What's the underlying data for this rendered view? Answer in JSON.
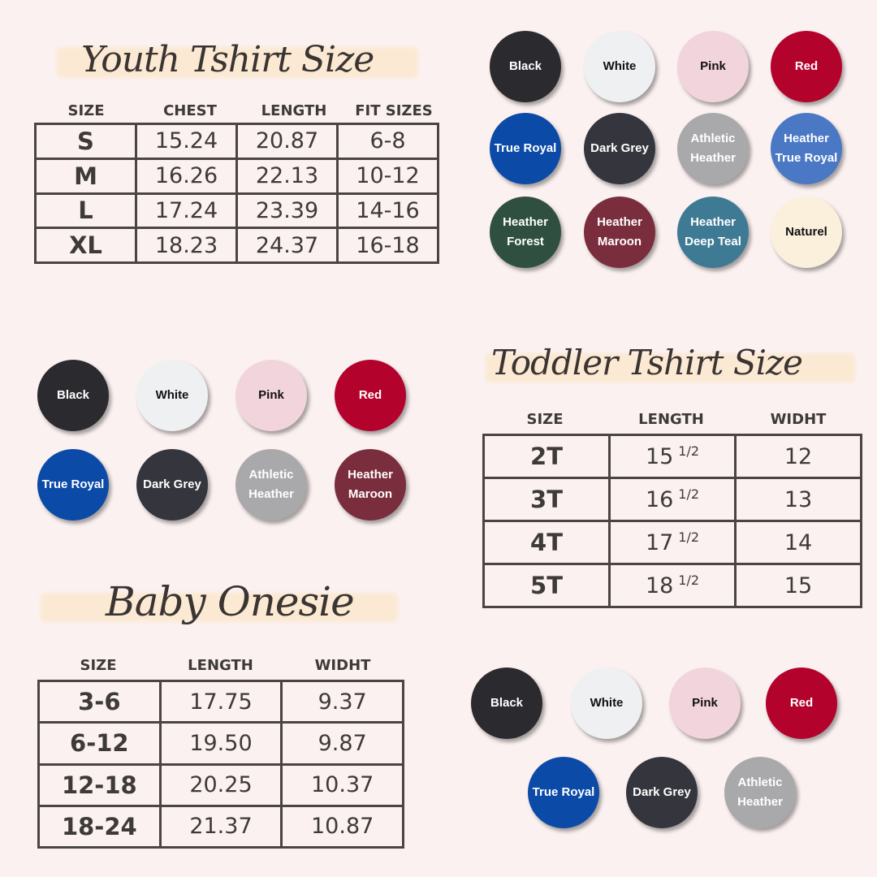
{
  "youth": {
    "title": "Youth Tshirt Size",
    "headers": [
      "SIZE",
      "CHEST",
      "LENGTH",
      "FIT SIZES"
    ],
    "rows": [
      [
        "S",
        "15.24",
        "20.87",
        "6-8"
      ],
      [
        "M",
        "16.26",
        "22.13",
        "10-12"
      ],
      [
        "L",
        "17.24",
        "23.39",
        "14-16"
      ],
      [
        "XL",
        "18.23",
        "24.37",
        "16-18"
      ]
    ]
  },
  "toddler": {
    "title": "Toddler Tshirt Size",
    "headers": [
      "SIZE",
      "LENGTH",
      "WIDHT"
    ],
    "rows": [
      [
        "2T",
        "15",
        "1/2",
        "12"
      ],
      [
        "3T",
        "16",
        "1/2",
        "13"
      ],
      [
        "4T",
        "17",
        "1/2",
        "14"
      ],
      [
        "5T",
        "18",
        "1/2",
        "15"
      ]
    ]
  },
  "baby": {
    "title": "Baby Onesie",
    "headers": [
      "SIZE",
      "LENGTH",
      "WIDHT"
    ],
    "rows": [
      [
        "3-6",
        "17.75",
        "9.37"
      ],
      [
        "6-12",
        "19.50",
        "9.87"
      ],
      [
        "12-18",
        "20.25",
        "10.37"
      ],
      [
        "18-24",
        "21.37",
        "10.87"
      ]
    ]
  },
  "swatches_youth": [
    {
      "label": "Black",
      "color": "#2b2a2e",
      "text": "#ffffff"
    },
    {
      "label": "White",
      "color": "#eef0f1",
      "text": "#111111"
    },
    {
      "label": "Pink",
      "color": "#f2d4dd",
      "text": "#111111"
    },
    {
      "label": "Red",
      "color": "#b3022b",
      "text": "#ffffff"
    },
    {
      "label": "True Royal",
      "color": "#0b4aa7",
      "text": "#ffffff"
    },
    {
      "label": "Dark Grey",
      "color": "#34353d",
      "text": "#ffffff"
    },
    {
      "label": "Athletic\nHeather",
      "color": "#a9a9ab",
      "text": "#ffffff"
    },
    {
      "label": "Heather\nTrue Royal",
      "color": "#4a78c4",
      "text": "#ffffff"
    },
    {
      "label": "Heather\nForest",
      "color": "#2f5041",
      "text": "#ffffff"
    },
    {
      "label": "Heather\nMaroon",
      "color": "#7a2d3d",
      "text": "#ffffff"
    },
    {
      "label": "Heather\nDeep Teal",
      "color": "#3f7a95",
      "text": "#ffffff"
    },
    {
      "label": "Naturel",
      "color": "#fbf0dc",
      "text": "#111111"
    }
  ],
  "swatches_baby": [
    {
      "label": "Black",
      "color": "#2b2a2e",
      "text": "#ffffff"
    },
    {
      "label": "White",
      "color": "#eef0f1",
      "text": "#111111"
    },
    {
      "label": "Pink",
      "color": "#f2d4dd",
      "text": "#111111"
    },
    {
      "label": "Red",
      "color": "#b3022b",
      "text": "#ffffff"
    },
    {
      "label": "True Royal",
      "color": "#0b4aa7",
      "text": "#ffffff"
    },
    {
      "label": "Dark Grey",
      "color": "#34353d",
      "text": "#ffffff"
    },
    {
      "label": "Athletic\nHeather",
      "color": "#a9a9ab",
      "text": "#ffffff"
    },
    {
      "label": "Heather\nMaroon",
      "color": "#7a2d3d",
      "text": "#ffffff"
    }
  ],
  "swatches_toddler": [
    {
      "label": "Black",
      "color": "#2b2a2e",
      "text": "#ffffff"
    },
    {
      "label": "White",
      "color": "#eef0f1",
      "text": "#111111"
    },
    {
      "label": "Pink",
      "color": "#f2d4dd",
      "text": "#111111"
    },
    {
      "label": "Red",
      "color": "#b3022b",
      "text": "#ffffff"
    },
    {
      "label": "True Royal",
      "color": "#0b4aa7",
      "text": "#ffffff"
    },
    {
      "label": "Dark Grey",
      "color": "#34353d",
      "text": "#ffffff"
    },
    {
      "label": "Athletic\nHeather",
      "color": "#a9a9ab",
      "text": "#ffffff"
    }
  ]
}
